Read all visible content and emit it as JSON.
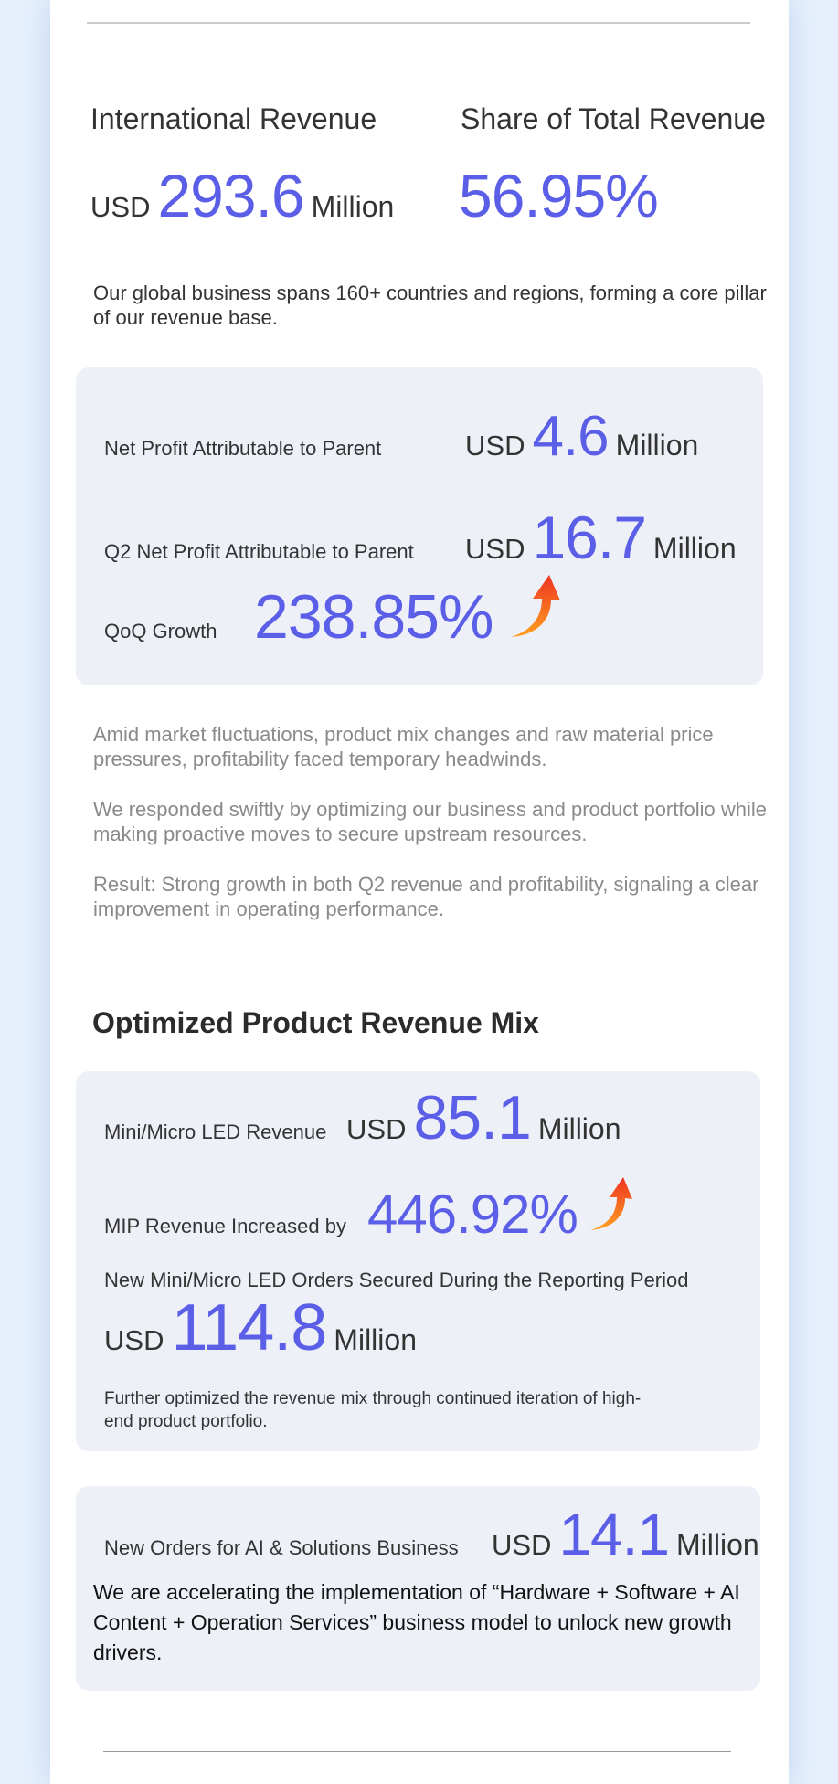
{
  "international_revenue": {
    "label": "International Revenue",
    "currency": "USD",
    "value": "293.6",
    "unit": "Million"
  },
  "share_of_total": {
    "label": "Share of Total Revenue",
    "value": "56.95%"
  },
  "global_note": "Our global business spans 160+ countries and regions, forming a core pillar of our revenue base.",
  "profit_box": {
    "rows": [
      {
        "label": "Net Profit Attributable to Parent",
        "currency": "USD",
        "value": "4.6",
        "unit": "Million"
      },
      {
        "label": "Q2 Net Profit Attributable to Parent",
        "currency": "USD",
        "value": "16.7",
        "unit": "Million"
      },
      {
        "label": "QoQ Growth",
        "value": "238.85%"
      }
    ]
  },
  "notes": [
    "Amid market fluctuations, product mix changes and raw material price pressures, profitability faced temporary headwinds.",
    "We responded swiftly by optimizing our business and product portfolio while making proactive moves to secure upstream resources.",
    "Result: Strong growth in both Q2 revenue and profitability, signaling a clear improvement in operating performance."
  ],
  "mix": {
    "title": "Optimized Product Revenue Mix",
    "rows": [
      {
        "label": "Mini/Micro LED Revenue",
        "currency": "USD",
        "value": "85.1",
        "unit": "Million"
      },
      {
        "label": "MIP Revenue Increased by",
        "value": "446.92%"
      }
    ],
    "orders": {
      "label": "New Mini/Micro LED Orders Secured During the Reporting Period",
      "currency": "USD",
      "value": "114.8",
      "unit": "Million"
    },
    "note": "Further optimized the revenue mix through continued iteration of high-end product portfolio."
  },
  "ai": {
    "label": "New Orders for AI & Solutions Business",
    "currency": "USD",
    "value": "14.1",
    "unit": "Million",
    "text": "We are accelerating the implementation of “Hardware + Software + AI Content + Operation Services” business model to unlock new growth drivers."
  }
}
